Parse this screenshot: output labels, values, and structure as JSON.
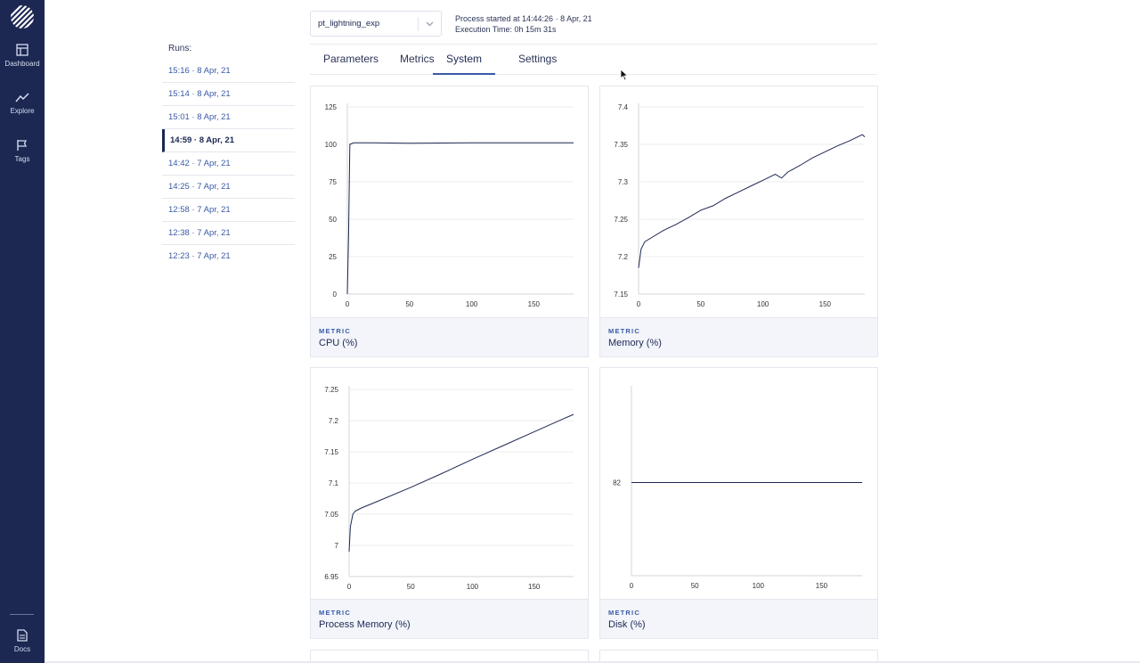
{
  "nav": {
    "items": [
      {
        "label": "Dashboard",
        "icon": "dashboard-icon"
      },
      {
        "label": "Explore",
        "icon": "explore-trend-icon"
      },
      {
        "label": "Tags",
        "icon": "flag-icon"
      }
    ],
    "docs_label": "Docs"
  },
  "runs": {
    "title": "Runs:",
    "items": [
      {
        "label": "15:16 · 8 Apr, 21",
        "active": false
      },
      {
        "label": "15:14 · 8 Apr, 21",
        "active": false
      },
      {
        "label": "15:01 · 8 Apr, 21",
        "active": false
      },
      {
        "label": "14:59 · 8 Apr, 21",
        "active": true
      },
      {
        "label": "14:42 · 7 Apr, 21",
        "active": false
      },
      {
        "label": "14:25 · 7 Apr, 21",
        "active": false
      },
      {
        "label": "12:58 · 7 Apr, 21",
        "active": false
      },
      {
        "label": "12:38 · 7 Apr, 21",
        "active": false
      },
      {
        "label": "12:23 · 7 Apr, 21",
        "active": false
      }
    ]
  },
  "header": {
    "experiment": "pt_lightning_exp",
    "process_started": "Process started at 14:44:26 · 8 Apr, 21",
    "execution_time": "Execution Time: 0h 15m 31s"
  },
  "tabs": [
    {
      "label": "Parameters",
      "active": false
    },
    {
      "label": "Metrics",
      "active": false
    },
    {
      "label": "System",
      "active": true
    },
    {
      "label": "Settings",
      "active": false
    }
  ],
  "colors": {
    "sidebar": "#1c2852",
    "accent": "#3a5aa6",
    "series": "#1c2852"
  },
  "chart_data": [
    {
      "type": "line",
      "kicker": "METRIC",
      "metric": "CPU (%)",
      "xticks": [
        "0",
        "50",
        "100",
        "150"
      ],
      "yticks": [
        "0",
        "25",
        "50",
        "75",
        "100",
        "125"
      ],
      "xlim": [
        0,
        182
      ],
      "ylim": [
        0,
        125
      ],
      "series": [
        {
          "points": [
            [
              0,
              0
            ],
            [
              1,
              40
            ],
            [
              2,
              100
            ],
            [
              5,
              101
            ],
            [
              20,
              101
            ],
            [
              50,
              100.8
            ],
            [
              100,
              101
            ],
            [
              150,
              101
            ],
            [
              182,
              101
            ]
          ]
        }
      ]
    },
    {
      "type": "line",
      "kicker": "METRIC",
      "metric": "Memory (%)",
      "xticks": [
        "0",
        "50",
        "100",
        "150"
      ],
      "yticks": [
        "7.15",
        "7.2",
        "7.25",
        "7.3",
        "7.35",
        "7.4"
      ],
      "xlim": [
        0,
        182
      ],
      "ylim": [
        7.15,
        7.4
      ],
      "series": [
        {
          "points": [
            [
              0,
              7.185
            ],
            [
              2,
              7.21
            ],
            [
              5,
              7.22
            ],
            [
              10,
              7.225
            ],
            [
              20,
              7.235
            ],
            [
              30,
              7.243
            ],
            [
              40,
              7.252
            ],
            [
              50,
              7.262
            ],
            [
              60,
              7.268
            ],
            [
              70,
              7.278
            ],
            [
              80,
              7.286
            ],
            [
              90,
              7.294
            ],
            [
              100,
              7.302
            ],
            [
              110,
              7.31
            ],
            [
              115,
              7.305
            ],
            [
              120,
              7.313
            ],
            [
              130,
              7.322
            ],
            [
              140,
              7.332
            ],
            [
              150,
              7.34
            ],
            [
              160,
              7.348
            ],
            [
              170,
              7.355
            ],
            [
              180,
              7.363
            ],
            [
              182,
              7.36
            ]
          ]
        }
      ]
    },
    {
      "type": "line",
      "kicker": "METRIC",
      "metric": "Process Memory (%)",
      "xticks": [
        "0",
        "50",
        "100",
        "150"
      ],
      "yticks": [
        "6.95",
        "7",
        "7.05",
        "7.1",
        "7.15",
        "7.2",
        "7.25"
      ],
      "xlim": [
        0,
        182
      ],
      "ylim": [
        6.95,
        7.25
      ],
      "series": [
        {
          "points": [
            [
              0,
              6.99
            ],
            [
              1,
              7.03
            ],
            [
              3,
              7.05
            ],
            [
              5,
              7.055
            ],
            [
              10,
              7.06
            ],
            [
              20,
              7.068
            ],
            [
              50,
              7.093
            ],
            [
              75,
              7.115
            ],
            [
              100,
              7.138
            ],
            [
              125,
              7.16
            ],
            [
              150,
              7.182
            ],
            [
              175,
              7.204
            ],
            [
              182,
              7.21
            ]
          ]
        }
      ]
    },
    {
      "type": "line",
      "kicker": "METRIC",
      "metric": "Disk (%)",
      "xticks": [
        "0",
        "50",
        "100",
        "150"
      ],
      "yticks": [
        "82"
      ],
      "xlim": [
        0,
        182
      ],
      "ylim": [
        81,
        83
      ],
      "series": [
        {
          "points": [
            [
              0,
              82
            ],
            [
              182,
              82
            ]
          ]
        }
      ]
    }
  ]
}
